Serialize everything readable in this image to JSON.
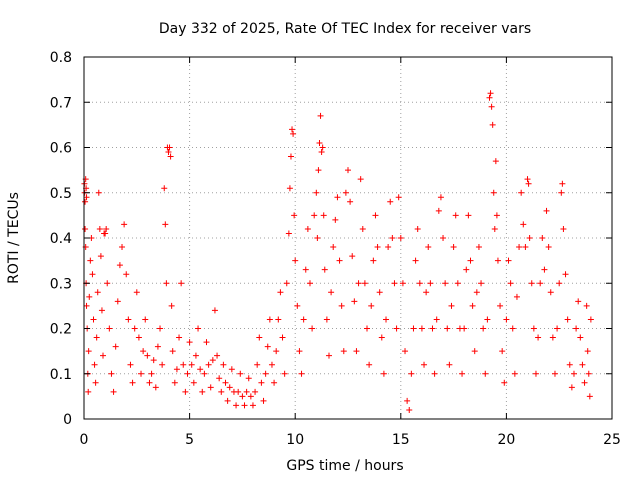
{
  "chart_data": {
    "type": "scatter",
    "title": "Day 332 of 2025, Rate Of TEC Index for receiver vars",
    "xlabel": "GPS time / hours",
    "ylabel": "ROTI / TECUs",
    "xlim": [
      0,
      25
    ],
    "ylim": [
      0,
      0.8
    ],
    "x_ticks": [
      0,
      5,
      10,
      15,
      20,
      25
    ],
    "y_ticks": [
      0,
      0.1,
      0.2,
      0.3,
      0.4,
      0.5,
      0.6,
      0.7,
      0.8
    ],
    "x_tick_labels": [
      "0",
      "5",
      "10",
      "15",
      "20",
      "25"
    ],
    "y_tick_labels": [
      "0",
      "0.1",
      "0.2",
      "0.3",
      "0.4",
      "0.5",
      "0.6",
      "0.7",
      "0.8"
    ],
    "grid": true,
    "marker": "plus",
    "color": "#ff0000",
    "points": [
      [
        0.02,
        0.52
      ],
      [
        0.03,
        0.5
      ],
      [
        0.05,
        0.48
      ],
      [
        0.08,
        0.53
      ],
      [
        0.1,
        0.51
      ],
      [
        0.12,
        0.49
      ],
      [
        0.05,
        0.42
      ],
      [
        0.08,
        0.38
      ],
      [
        0.1,
        0.3
      ],
      [
        0.12,
        0.25
      ],
      [
        0.15,
        0.2
      ],
      [
        0.18,
        0.1
      ],
      [
        0.2,
        0.06
      ],
      [
        0.22,
        0.15
      ],
      [
        0.25,
        0.27
      ],
      [
        0.3,
        0.35
      ],
      [
        0.35,
        0.4
      ],
      [
        0.4,
        0.32
      ],
      [
        0.45,
        0.22
      ],
      [
        0.5,
        0.12
      ],
      [
        0.55,
        0.08
      ],
      [
        0.6,
        0.18
      ],
      [
        0.65,
        0.28
      ],
      [
        0.7,
        0.5
      ],
      [
        0.75,
        0.42
      ],
      [
        0.8,
        0.36
      ],
      [
        0.85,
        0.24
      ],
      [
        0.9,
        0.14
      ],
      [
        0.95,
        0.41
      ],
      [
        1.0,
        0.41
      ],
      [
        1.05,
        0.42
      ],
      [
        1.1,
        0.3
      ],
      [
        1.2,
        0.2
      ],
      [
        1.3,
        0.1
      ],
      [
        1.4,
        0.06
      ],
      [
        1.5,
        0.16
      ],
      [
        1.6,
        0.26
      ],
      [
        1.7,
        0.34
      ],
      [
        1.8,
        0.38
      ],
      [
        1.9,
        0.43
      ],
      [
        2.0,
        0.32
      ],
      [
        2.1,
        0.22
      ],
      [
        2.2,
        0.12
      ],
      [
        2.3,
        0.08
      ],
      [
        2.4,
        0.2
      ],
      [
        2.5,
        0.28
      ],
      [
        2.6,
        0.18
      ],
      [
        2.7,
        0.1
      ],
      [
        2.8,
        0.15
      ],
      [
        2.9,
        0.22
      ],
      [
        3.0,
        0.14
      ],
      [
        3.1,
        0.08
      ],
      [
        3.2,
        0.1
      ],
      [
        3.3,
        0.13
      ],
      [
        3.4,
        0.07
      ],
      [
        3.5,
        0.16
      ],
      [
        3.6,
        0.2
      ],
      [
        3.7,
        0.12
      ],
      [
        3.8,
        0.51
      ],
      [
        3.85,
        0.43
      ],
      [
        3.9,
        0.3
      ],
      [
        3.95,
        0.6
      ],
      [
        4.0,
        0.59
      ],
      [
        4.05,
        0.6
      ],
      [
        4.1,
        0.58
      ],
      [
        4.15,
        0.25
      ],
      [
        4.2,
        0.15
      ],
      [
        4.3,
        0.08
      ],
      [
        4.4,
        0.11
      ],
      [
        4.5,
        0.18
      ],
      [
        4.6,
        0.3
      ],
      [
        4.7,
        0.12
      ],
      [
        4.8,
        0.06
      ],
      [
        4.9,
        0.1
      ],
      [
        5.0,
        0.17
      ],
      [
        5.1,
        0.12
      ],
      [
        5.2,
        0.08
      ],
      [
        5.3,
        0.14
      ],
      [
        5.4,
        0.2
      ],
      [
        5.5,
        0.11
      ],
      [
        5.6,
        0.06
      ],
      [
        5.7,
        0.1
      ],
      [
        5.8,
        0.17
      ],
      [
        5.9,
        0.12
      ],
      [
        6.0,
        0.07
      ],
      [
        6.1,
        0.13
      ],
      [
        6.2,
        0.24
      ],
      [
        6.3,
        0.14
      ],
      [
        6.4,
        0.09
      ],
      [
        6.5,
        0.06
      ],
      [
        6.6,
        0.12
      ],
      [
        6.7,
        0.08
      ],
      [
        6.8,
        0.04
      ],
      [
        6.9,
        0.07
      ],
      [
        7.0,
        0.11
      ],
      [
        7.1,
        0.06
      ],
      [
        7.2,
        0.03
      ],
      [
        7.3,
        0.06
      ],
      [
        7.4,
        0.1
      ],
      [
        7.5,
        0.05
      ],
      [
        7.6,
        0.03
      ],
      [
        7.7,
        0.06
      ],
      [
        7.8,
        0.09
      ],
      [
        7.9,
        0.05
      ],
      [
        8.0,
        0.03
      ],
      [
        8.1,
        0.06
      ],
      [
        8.2,
        0.12
      ],
      [
        8.3,
        0.18
      ],
      [
        8.4,
        0.08
      ],
      [
        8.5,
        0.04
      ],
      [
        8.6,
        0.1
      ],
      [
        8.7,
        0.16
      ],
      [
        8.8,
        0.22
      ],
      [
        8.9,
        0.12
      ],
      [
        9.0,
        0.08
      ],
      [
        9.1,
        0.15
      ],
      [
        9.2,
        0.22
      ],
      [
        9.3,
        0.28
      ],
      [
        9.4,
        0.18
      ],
      [
        9.5,
        0.1
      ],
      [
        9.6,
        0.3
      ],
      [
        9.7,
        0.41
      ],
      [
        9.75,
        0.51
      ],
      [
        9.8,
        0.58
      ],
      [
        9.85,
        0.64
      ],
      [
        9.9,
        0.63
      ],
      [
        9.95,
        0.45
      ],
      [
        10.0,
        0.35
      ],
      [
        10.1,
        0.25
      ],
      [
        10.2,
        0.15
      ],
      [
        10.3,
        0.1
      ],
      [
        10.4,
        0.22
      ],
      [
        10.5,
        0.33
      ],
      [
        10.6,
        0.42
      ],
      [
        10.7,
        0.3
      ],
      [
        10.8,
        0.2
      ],
      [
        10.9,
        0.45
      ],
      [
        11.0,
        0.5
      ],
      [
        11.05,
        0.4
      ],
      [
        11.1,
        0.55
      ],
      [
        11.15,
        0.61
      ],
      [
        11.2,
        0.67
      ],
      [
        11.25,
        0.59
      ],
      [
        11.3,
        0.6
      ],
      [
        11.35,
        0.45
      ],
      [
        11.4,
        0.33
      ],
      [
        11.5,
        0.22
      ],
      [
        11.6,
        0.14
      ],
      [
        11.7,
        0.28
      ],
      [
        11.8,
        0.38
      ],
      [
        11.9,
        0.44
      ],
      [
        12.0,
        0.49
      ],
      [
        12.1,
        0.35
      ],
      [
        12.2,
        0.25
      ],
      [
        12.3,
        0.15
      ],
      [
        12.4,
        0.5
      ],
      [
        12.5,
        0.55
      ],
      [
        12.6,
        0.48
      ],
      [
        12.7,
        0.36
      ],
      [
        12.8,
        0.26
      ],
      [
        12.9,
        0.15
      ],
      [
        13.0,
        0.3
      ],
      [
        13.1,
        0.53
      ],
      [
        13.2,
        0.42
      ],
      [
        13.3,
        0.3
      ],
      [
        13.4,
        0.2
      ],
      [
        13.5,
        0.12
      ],
      [
        13.6,
        0.25
      ],
      [
        13.7,
        0.35
      ],
      [
        13.8,
        0.45
      ],
      [
        13.9,
        0.38
      ],
      [
        14.0,
        0.28
      ],
      [
        14.1,
        0.18
      ],
      [
        14.2,
        0.1
      ],
      [
        14.3,
        0.22
      ],
      [
        14.4,
        0.38
      ],
      [
        14.5,
        0.48
      ],
      [
        14.6,
        0.4
      ],
      [
        14.7,
        0.3
      ],
      [
        14.8,
        0.2
      ],
      [
        14.9,
        0.49
      ],
      [
        15.0,
        0.4
      ],
      [
        15.1,
        0.3
      ],
      [
        15.2,
        0.15
      ],
      [
        15.3,
        0.04
      ],
      [
        15.4,
        0.02
      ],
      [
        15.5,
        0.1
      ],
      [
        15.6,
        0.2
      ],
      [
        15.7,
        0.35
      ],
      [
        15.8,
        0.42
      ],
      [
        15.9,
        0.3
      ],
      [
        16.0,
        0.2
      ],
      [
        16.1,
        0.12
      ],
      [
        16.2,
        0.28
      ],
      [
        16.3,
        0.38
      ],
      [
        16.4,
        0.3
      ],
      [
        16.5,
        0.2
      ],
      [
        16.6,
        0.1
      ],
      [
        16.7,
        0.22
      ],
      [
        16.8,
        0.46
      ],
      [
        16.9,
        0.49
      ],
      [
        17.0,
        0.4
      ],
      [
        17.1,
        0.3
      ],
      [
        17.2,
        0.2
      ],
      [
        17.3,
        0.12
      ],
      [
        17.4,
        0.25
      ],
      [
        17.5,
        0.38
      ],
      [
        17.6,
        0.45
      ],
      [
        17.7,
        0.3
      ],
      [
        17.8,
        0.2
      ],
      [
        17.9,
        0.1
      ],
      [
        18.0,
        0.2
      ],
      [
        18.1,
        0.33
      ],
      [
        18.2,
        0.45
      ],
      [
        18.3,
        0.35
      ],
      [
        18.4,
        0.25
      ],
      [
        18.5,
        0.15
      ],
      [
        18.6,
        0.28
      ],
      [
        18.7,
        0.38
      ],
      [
        18.8,
        0.3
      ],
      [
        18.9,
        0.2
      ],
      [
        19.0,
        0.1
      ],
      [
        19.1,
        0.22
      ],
      [
        19.2,
        0.71
      ],
      [
        19.25,
        0.72
      ],
      [
        19.3,
        0.69
      ],
      [
        19.35,
        0.65
      ],
      [
        19.4,
        0.5
      ],
      [
        19.45,
        0.42
      ],
      [
        19.5,
        0.57
      ],
      [
        19.55,
        0.45
      ],
      [
        19.6,
        0.35
      ],
      [
        19.7,
        0.25
      ],
      [
        19.8,
        0.15
      ],
      [
        19.9,
        0.08
      ],
      [
        20.0,
        0.22
      ],
      [
        20.1,
        0.35
      ],
      [
        20.2,
        0.3
      ],
      [
        20.3,
        0.2
      ],
      [
        20.4,
        0.1
      ],
      [
        20.5,
        0.27
      ],
      [
        20.6,
        0.38
      ],
      [
        20.7,
        0.5
      ],
      [
        20.8,
        0.43
      ],
      [
        20.9,
        0.38
      ],
      [
        21.0,
        0.53
      ],
      [
        21.05,
        0.52
      ],
      [
        21.1,
        0.4
      ],
      [
        21.2,
        0.3
      ],
      [
        21.3,
        0.2
      ],
      [
        21.4,
        0.1
      ],
      [
        21.5,
        0.18
      ],
      [
        21.6,
        0.3
      ],
      [
        21.7,
        0.4
      ],
      [
        21.8,
        0.33
      ],
      [
        21.9,
        0.46
      ],
      [
        22.0,
        0.38
      ],
      [
        22.1,
        0.28
      ],
      [
        22.2,
        0.18
      ],
      [
        22.3,
        0.1
      ],
      [
        22.4,
        0.2
      ],
      [
        22.5,
        0.3
      ],
      [
        22.6,
        0.5
      ],
      [
        22.65,
        0.52
      ],
      [
        22.7,
        0.42
      ],
      [
        22.8,
        0.32
      ],
      [
        22.9,
        0.22
      ],
      [
        23.0,
        0.12
      ],
      [
        23.1,
        0.07
      ],
      [
        23.2,
        0.1
      ],
      [
        23.3,
        0.2
      ],
      [
        23.4,
        0.26
      ],
      [
        23.5,
        0.18
      ],
      [
        23.6,
        0.12
      ],
      [
        23.7,
        0.08
      ],
      [
        23.8,
        0.25
      ],
      [
        23.85,
        0.15
      ],
      [
        23.9,
        0.1
      ],
      [
        23.95,
        0.05
      ],
      [
        24.0,
        0.22
      ]
    ]
  }
}
